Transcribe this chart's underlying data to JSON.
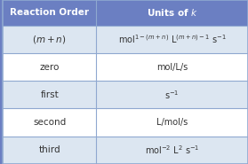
{
  "header_bg": "#6b7fc2",
  "header_text_color": "#ffffff",
  "row_bg_even": "#dce6f1",
  "row_bg_odd": "#ffffff",
  "line_color": "#8fa8d0",
  "col1_header": "Reaction Order",
  "col2_header": "Units of $\\mathit{k}$",
  "rows": [
    {
      "col1": "$(m + n)$",
      "col2": "mol$^{1-(m+n)}$ L$^{(m+n)-1}$ s$^{-1}$"
    },
    {
      "col1": "zero",
      "col2": "mol/L/s"
    },
    {
      "col1": "first",
      "col2": "s$^{-1}$"
    },
    {
      "col1": "second",
      "col2": "L/mol/s"
    },
    {
      "col1": "third",
      "col2": "mol$^{-2}$ L$^{2}$ s$^{-1}$"
    }
  ],
  "figsize": [
    2.79,
    1.85
  ],
  "dpi": 100
}
